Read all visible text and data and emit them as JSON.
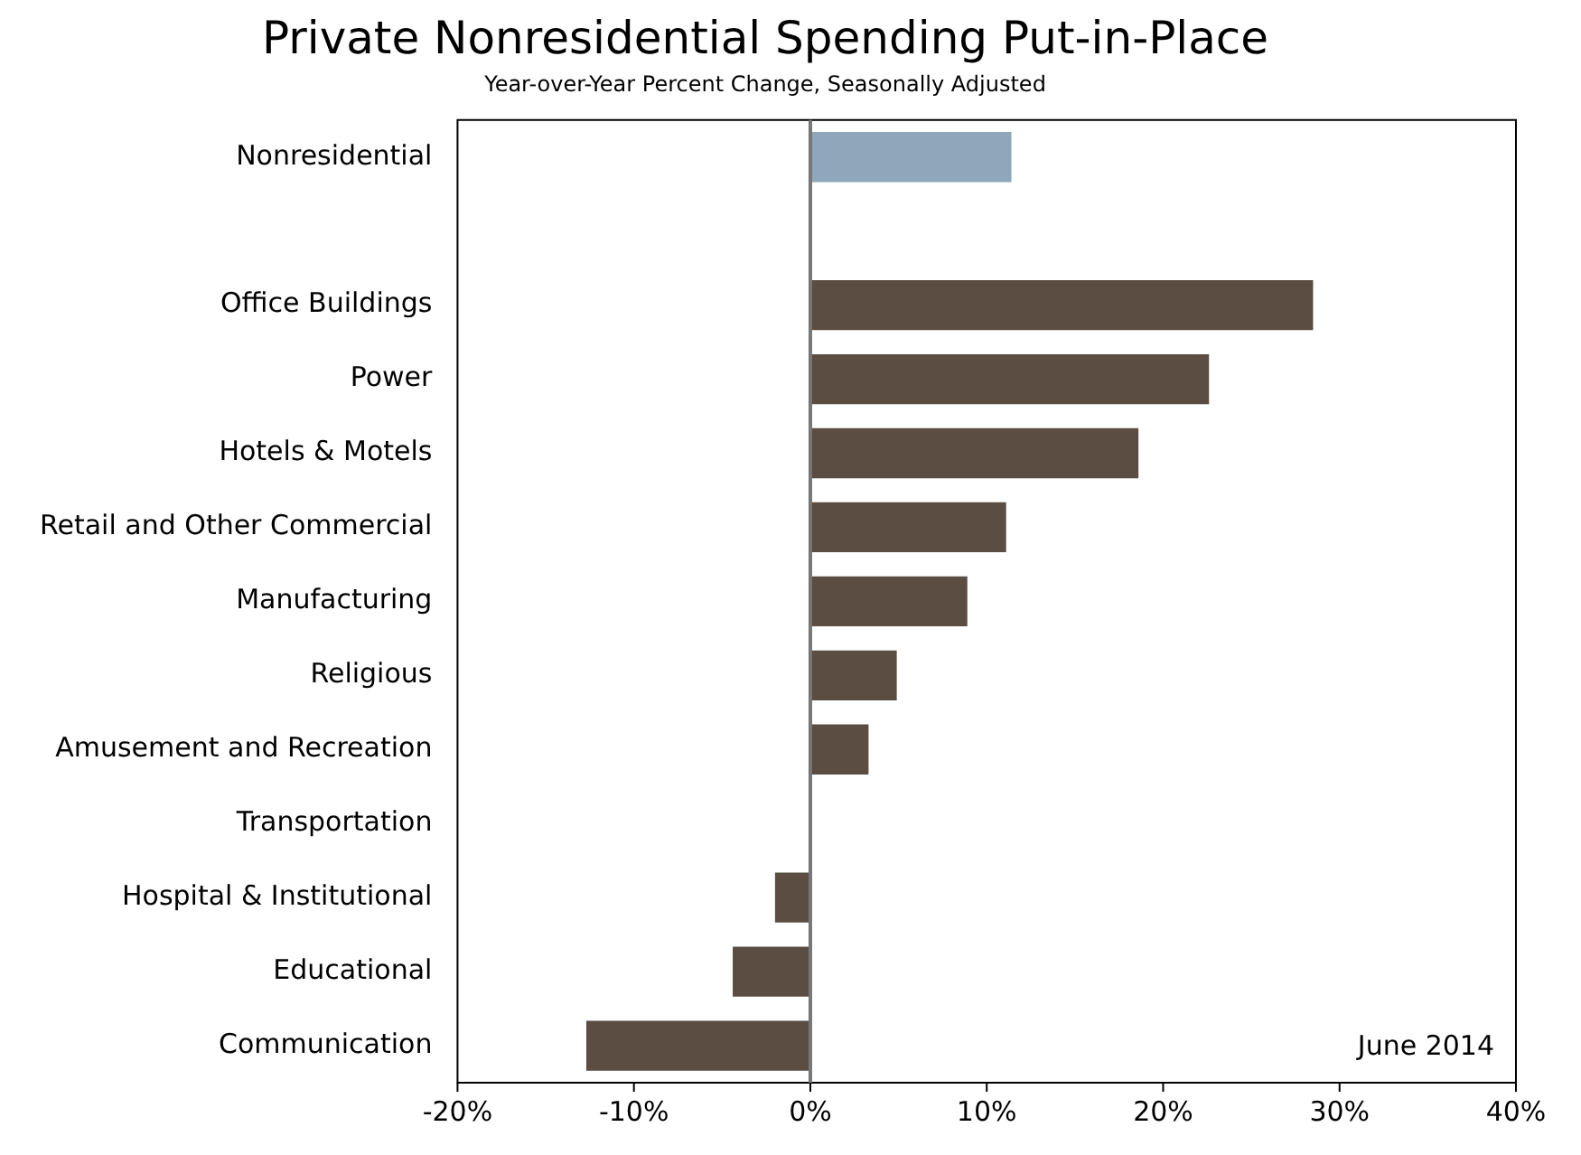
{
  "chart_data": {
    "type": "bar",
    "orientation": "horizontal",
    "title": "Private Nonresidential Spending Put-in-Place",
    "subtitle": "Year-over-Year Percent Change, Seasonally Adjusted",
    "categories": [
      "Nonresidential",
      null,
      "Office Buildings",
      "Power",
      "Hotels & Motels",
      "Retail and Other Commercial",
      "Manufacturing",
      "Religious",
      "Amusement and Recreation",
      "Transportation",
      "Hospital & Institutional",
      "Educational",
      "Communication"
    ],
    "values": [
      11.4,
      null,
      28.5,
      22.6,
      18.6,
      11.1,
      8.9,
      4.9,
      3.3,
      null,
      -2.0,
      -4.4,
      -12.7
    ],
    "colors": [
      "#8ea7ba",
      null,
      "#5b4d42",
      "#5b4d42",
      "#5b4d42",
      "#5b4d42",
      "#5b4d42",
      "#5b4d42",
      "#5b4d42",
      "#5b4d42",
      "#5b4d42",
      "#5b4d42",
      "#5b4d42"
    ],
    "xlim": [
      -20,
      40
    ],
    "xticks": [
      {
        "value": -20,
        "label": "-20%"
      },
      {
        "value": -10,
        "label": "-10%"
      },
      {
        "value": 0,
        "label": "0%"
      },
      {
        "value": 10,
        "label": "10%"
      },
      {
        "value": 20,
        "label": "20%"
      },
      {
        "value": 30,
        "label": "30%"
      },
      {
        "value": 40,
        "label": "40%"
      }
    ],
    "grid": false,
    "legend": false,
    "ref_lines": [
      {
        "axis": "x",
        "value": 0,
        "color": "#777777"
      }
    ],
    "annotations": [
      "June 2014"
    ]
  }
}
